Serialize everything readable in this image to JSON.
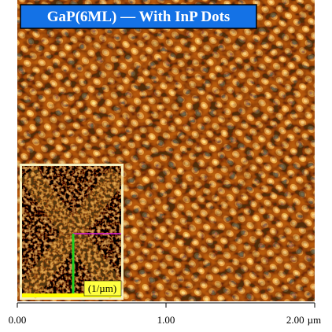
{
  "image": {
    "title": "GaP(6ML) — With InP Dots",
    "inset_label": "(1/µm)"
  },
  "axis": {
    "lim": [
      0,
      2
    ],
    "ticks": [
      {
        "value": 0,
        "label": "0.00"
      },
      {
        "value": 1,
        "label": "1.00"
      },
      {
        "value": 2,
        "label": "2.00"
      }
    ],
    "unit": "µm"
  }
}
